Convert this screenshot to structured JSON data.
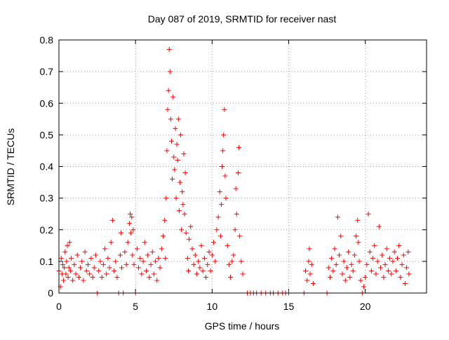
{
  "chart_data": {
    "type": "scatter",
    "title": "Day 087 of 2019, SRMTID for receiver nast",
    "xlabel": "GPS time / hours",
    "ylabel": "SRMTID / TECUs",
    "xlim": [
      0,
      24
    ],
    "ylim": [
      0,
      0.8
    ],
    "xticks": [
      0,
      5,
      10,
      15,
      20
    ],
    "yticks": [
      0,
      0.1,
      0.2,
      0.3,
      0.4,
      0.5,
      0.6,
      0.7,
      0.8
    ],
    "grid": true,
    "legend": "none",
    "marker": "+",
    "colors": {
      "points": "#ff0000",
      "grid": "#a0a0a0",
      "axes": "#000000"
    },
    "series": [
      {
        "points": [
          [
            0.0,
            0.07
          ],
          [
            0.1,
            0.02
          ],
          [
            0.15,
            0.11
          ],
          [
            0.2,
            0.06
          ],
          [
            0.25,
            0.09
          ],
          [
            0.3,
            0.04
          ],
          [
            0.35,
            0.08
          ],
          [
            0.4,
            0.13
          ],
          [
            0.45,
            0.06
          ],
          [
            0.5,
            0.1
          ],
          [
            0.55,
            0.15
          ],
          [
            0.6,
            0.05
          ],
          [
            0.65,
            0.08
          ],
          [
            0.7,
            0.16
          ],
          [
            0.75,
            0.07
          ],
          [
            0.8,
            0.11
          ],
          [
            0.9,
            0.04
          ],
          [
            1.0,
            0.09
          ],
          [
            1.1,
            0.06
          ],
          [
            1.2,
            0.12
          ],
          [
            1.3,
            0.05
          ],
          [
            1.4,
            0.08
          ],
          [
            1.5,
            0.1
          ],
          [
            1.6,
            0.04
          ],
          [
            1.7,
            0.13
          ],
          [
            1.8,
            0.07
          ],
          [
            1.9,
            0.09
          ],
          [
            2.0,
            0.06
          ],
          [
            2.1,
            0.11
          ],
          [
            2.2,
            0.05
          ],
          [
            2.3,
            0.08
          ],
          [
            2.4,
            0.12
          ],
          [
            2.5,
            0.0
          ],
          [
            2.6,
            0.07
          ],
          [
            2.7,
            0.1
          ],
          [
            2.8,
            0.05
          ],
          [
            2.9,
            0.09
          ],
          [
            3.0,
            0.14
          ],
          [
            3.1,
            0.06
          ],
          [
            3.2,
            0.11
          ],
          [
            3.3,
            0.08
          ],
          [
            3.4,
            0.16
          ],
          [
            3.5,
            0.23
          ],
          [
            3.6,
            0.07
          ],
          [
            3.7,
            0.1
          ],
          [
            3.8,
            0.05
          ],
          [
            3.9,
            0.0
          ],
          [
            4.0,
            0.12
          ],
          [
            4.05,
            0.19
          ],
          [
            4.1,
            0.08
          ],
          [
            4.2,
            0.0
          ],
          [
            4.3,
            0.13
          ],
          [
            4.4,
            0.09
          ],
          [
            4.5,
            0.16
          ],
          [
            4.6,
            0.22
          ],
          [
            4.65,
            0.25
          ],
          [
            4.7,
            0.19
          ],
          [
            4.75,
            0.24
          ],
          [
            4.8,
            0.12
          ],
          [
            4.85,
            0.2
          ],
          [
            4.9,
            0.09
          ],
          [
            5.0,
            0.0
          ],
          [
            5.1,
            0.14
          ],
          [
            5.2,
            0.08
          ],
          [
            5.3,
            0.11
          ],
          [
            5.4,
            0.06
          ],
          [
            5.5,
            0.1
          ],
          [
            5.6,
            0.16
          ],
          [
            5.7,
            0.07
          ],
          [
            5.8,
            0.12
          ],
          [
            5.9,
            0.05
          ],
          [
            6.0,
            0.09
          ],
          [
            6.1,
            0.13
          ],
          [
            6.2,
            0.06
          ],
          [
            6.3,
            0.1
          ],
          [
            6.4,
            0.04
          ],
          [
            6.5,
            0.11
          ],
          [
            6.6,
            0.08
          ],
          [
            6.7,
            0.14
          ],
          [
            6.8,
            0.18
          ],
          [
            6.9,
            0.23
          ],
          [
            6.95,
            0.11
          ],
          [
            7.0,
            0.3
          ],
          [
            7.05,
            0.45
          ],
          [
            7.1,
            0.58
          ],
          [
            7.15,
            0.64
          ],
          [
            7.2,
            0.77
          ],
          [
            7.25,
            0.7
          ],
          [
            7.3,
            0.55
          ],
          [
            7.35,
            0.48
          ],
          [
            7.4,
            0.36
          ],
          [
            7.45,
            0.62
          ],
          [
            7.5,
            0.43
          ],
          [
            7.55,
            0.39
          ],
          [
            7.6,
            0.52
          ],
          [
            7.65,
            0.3
          ],
          [
            7.7,
            0.47
          ],
          [
            7.75,
            0.42
          ],
          [
            7.8,
            0.55
          ],
          [
            7.85,
            0.26
          ],
          [
            7.9,
            0.35
          ],
          [
            7.95,
            0.5
          ],
          [
            8.0,
            0.2
          ],
          [
            8.05,
            0.32
          ],
          [
            8.1,
            0.28
          ],
          [
            8.15,
            0.44
          ],
          [
            8.2,
            0.25
          ],
          [
            8.25,
            0.38
          ],
          [
            8.3,
            0.19
          ],
          [
            8.4,
            0.11
          ],
          [
            8.45,
            0.07
          ],
          [
            8.5,
            0.17
          ],
          [
            8.6,
            0.21
          ],
          [
            8.7,
            0.14
          ],
          [
            8.8,
            0.09
          ],
          [
            8.9,
            0.12
          ],
          [
            9.0,
            0.06
          ],
          [
            9.1,
            0.1
          ],
          [
            9.2,
            0.08
          ],
          [
            9.3,
            0.15
          ],
          [
            9.4,
            0.07
          ],
          [
            9.5,
            0.11
          ],
          [
            9.6,
            0.05
          ],
          [
            9.7,
            0.09
          ],
          [
            9.8,
            0.13
          ],
          [
            9.9,
            0.07
          ],
          [
            10.0,
            0.12
          ],
          [
            10.1,
            0.16
          ],
          [
            10.2,
            0.1
          ],
          [
            10.3,
            0.2
          ],
          [
            10.4,
            0.24
          ],
          [
            10.5,
            0.32
          ],
          [
            10.55,
            0.18
          ],
          [
            10.6,
            0.28
          ],
          [
            10.65,
            0.4
          ],
          [
            10.7,
            0.45
          ],
          [
            10.75,
            0.5
          ],
          [
            10.8,
            0.58
          ],
          [
            10.85,
            0.37
          ],
          [
            10.9,
            0.3
          ],
          [
            11.0,
            0.15
          ],
          [
            11.1,
            0.09
          ],
          [
            11.2,
            0.05
          ],
          [
            11.3,
            0.1
          ],
          [
            11.4,
            0.12
          ],
          [
            11.5,
            0.2
          ],
          [
            11.55,
            0.33
          ],
          [
            11.6,
            0.25
          ],
          [
            11.7,
            0.38
          ],
          [
            11.75,
            0.46
          ],
          [
            11.8,
            0.18
          ],
          [
            11.9,
            0.1
          ],
          [
            12.0,
            0.06
          ],
          [
            12.3,
            0.0
          ],
          [
            12.5,
            0.0
          ],
          [
            12.7,
            0.0
          ],
          [
            12.9,
            0.0
          ],
          [
            13.2,
            0.0
          ],
          [
            13.5,
            0.0
          ],
          [
            13.8,
            0.0
          ],
          [
            14.0,
            0.0
          ],
          [
            14.3,
            0.0
          ],
          [
            14.6,
            0.0
          ],
          [
            14.8,
            0.0
          ],
          [
            15.0,
            0.0
          ],
          [
            16.0,
            0.0
          ],
          [
            16.1,
            0.07
          ],
          [
            16.2,
            0.04
          ],
          [
            16.3,
            0.1
          ],
          [
            16.35,
            0.14
          ],
          [
            16.4,
            0.06
          ],
          [
            16.5,
            0.09
          ],
          [
            16.6,
            0.03
          ],
          [
            17.5,
            0.0
          ],
          [
            17.6,
            0.08
          ],
          [
            17.7,
            0.05
          ],
          [
            17.8,
            0.11
          ],
          [
            17.9,
            0.07
          ],
          [
            18.0,
            0.14
          ],
          [
            18.1,
            0.09
          ],
          [
            18.2,
            0.24
          ],
          [
            18.3,
            0.12
          ],
          [
            18.4,
            0.18
          ],
          [
            18.5,
            0.06
          ],
          [
            18.6,
            0.1
          ],
          [
            18.7,
            0.04
          ],
          [
            18.8,
            0.08
          ],
          [
            18.9,
            0.13
          ],
          [
            19.0,
            0.05
          ],
          [
            19.1,
            0.09
          ],
          [
            19.2,
            0.07
          ],
          [
            19.3,
            0.12
          ],
          [
            19.4,
            0.18
          ],
          [
            19.5,
            0.23
          ],
          [
            19.55,
            0.16
          ],
          [
            19.6,
            0.1
          ],
          [
            19.7,
            0.04
          ],
          [
            19.8,
            0.0
          ],
          [
            19.9,
            0.02
          ],
          [
            20.0,
            0.05
          ],
          [
            20.1,
            0.09
          ],
          [
            20.2,
            0.25
          ],
          [
            20.3,
            0.13
          ],
          [
            20.4,
            0.07
          ],
          [
            20.5,
            0.11
          ],
          [
            20.6,
            0.15
          ],
          [
            20.7,
            0.06
          ],
          [
            20.8,
            0.1
          ],
          [
            20.9,
            0.21
          ],
          [
            21.0,
            0.08
          ],
          [
            21.1,
            0.12
          ],
          [
            21.2,
            0.05
          ],
          [
            21.3,
            0.09
          ],
          [
            21.4,
            0.14
          ],
          [
            21.5,
            0.07
          ],
          [
            21.6,
            0.11
          ],
          [
            21.7,
            0.06
          ],
          [
            21.8,
            0.1
          ],
          [
            21.9,
            0.13
          ],
          [
            22.0,
            0.07
          ],
          [
            22.1,
            0.11
          ],
          [
            22.2,
            0.15
          ],
          [
            22.3,
            0.05
          ],
          [
            22.4,
            0.09
          ],
          [
            22.5,
            0.12
          ],
          [
            22.6,
            0.03
          ],
          [
            22.7,
            0.08
          ],
          [
            22.8,
            0.13
          ],
          [
            22.85,
            0.06
          ]
        ]
      }
    ]
  }
}
